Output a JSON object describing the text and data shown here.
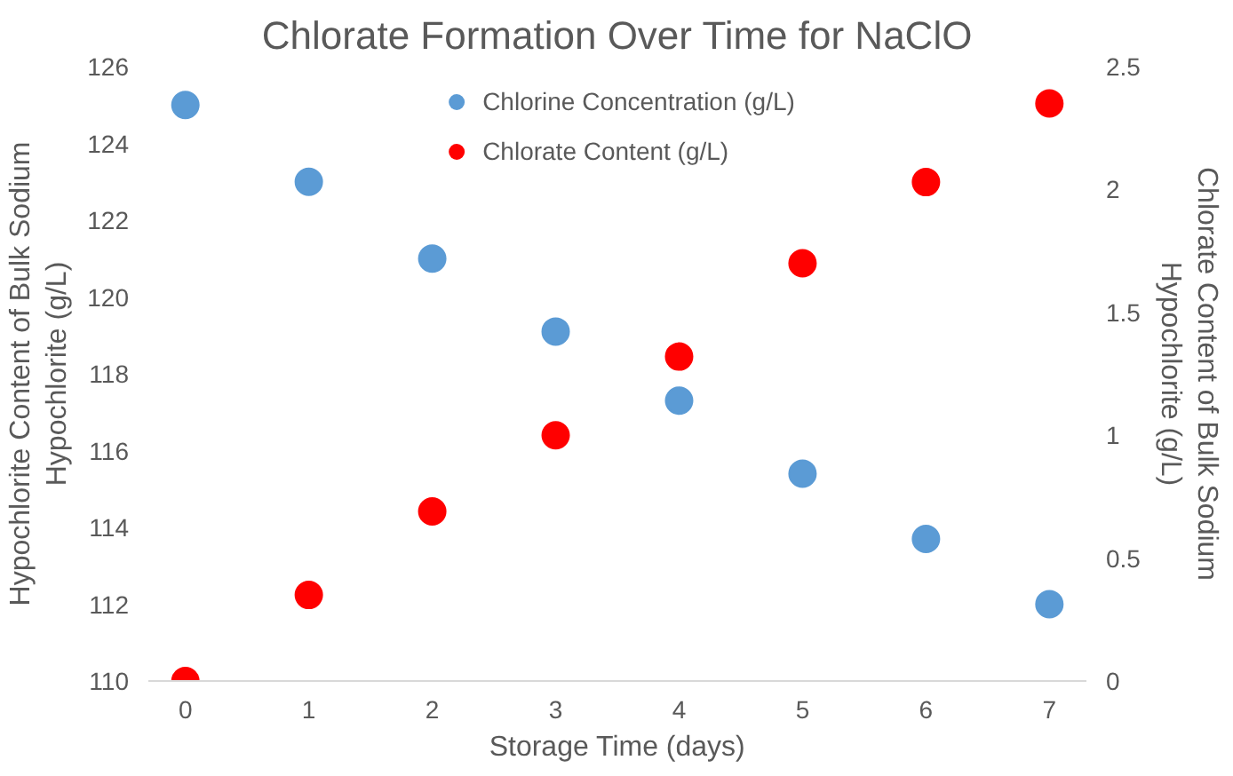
{
  "chart_data": {
    "type": "scatter",
    "title": "Chlorate Formation Over Time for NaClO",
    "xlabel": "Storage Time (days)",
    "ylabel": "Hypochlorite Content of Bulk Sodium Hypochlorite (g/L)",
    "y2label": "Chlorate Content of Bulk Sodium Hypochlorite (g/L)",
    "x": [
      0,
      1,
      2,
      3,
      4,
      5,
      6,
      7
    ],
    "series": [
      {
        "name": "Chlorine Concentration (g/L)",
        "color": "#5b9bd5",
        "values": [
          125,
          123,
          121,
          119.1,
          117.3,
          115.4,
          113.7,
          112.0
        ]
      },
      {
        "name": "Chlorate Content (g/L)",
        "color": "#ff0000",
        "axis": "y2",
        "values": [
          0,
          0.35,
          0.69,
          1.0,
          1.32,
          1.7,
          2.03,
          2.35
        ]
      }
    ],
    "xlim": [
      -0.3,
      7.3
    ],
    "xticks": [
      0,
      1,
      2,
      3,
      4,
      5,
      6,
      7
    ],
    "ylim": [
      110,
      126
    ],
    "yticks": [
      110,
      112,
      114,
      116,
      118,
      120,
      122,
      124,
      126
    ],
    "y2lim": [
      0,
      2.5
    ],
    "y2ticks": [
      0,
      {
        "value": 0.5,
        "label": "0.5"
      },
      1,
      {
        "value": 1.5,
        "label": "1.5"
      },
      2,
      {
        "value": 2.5,
        "label": "2.5"
      }
    ],
    "legend": "top",
    "marker": "circle",
    "grid": false
  }
}
